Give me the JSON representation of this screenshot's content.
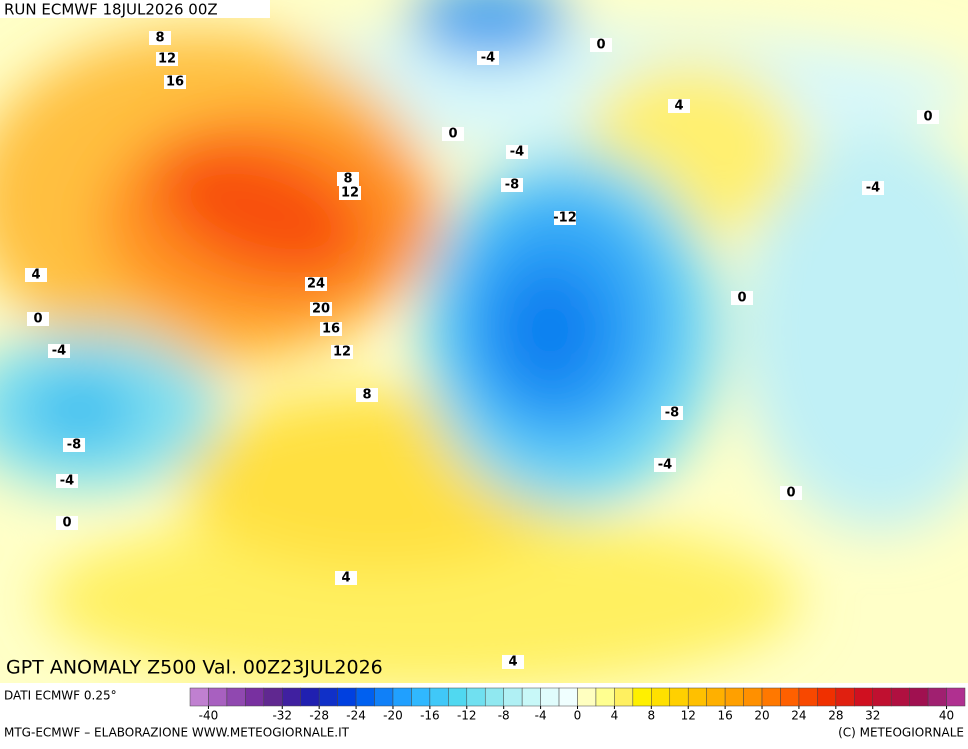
{
  "header": {
    "run": "RUN ECMWF 18JUL2026 00Z",
    "field": "GPT ANOMALY Z500 Val. 00Z23JUL2026"
  },
  "map": {
    "contour_labels": [
      8,
      12,
      16,
      8,
      12,
      24,
      20,
      16,
      12,
      8,
      4,
      0,
      -4,
      -8,
      -4,
      0,
      -4,
      0,
      4,
      0,
      0,
      -4,
      -8,
      -12,
      -4,
      0,
      -8,
      -4,
      0,
      4,
      4
    ]
  },
  "colorbar": {
    "range": [
      -42,
      42
    ],
    "ticks": [
      -40,
      -32,
      -28,
      -24,
      -20,
      -16,
      -12,
      -8,
      -4,
      0,
      4,
      8,
      12,
      16,
      20,
      24,
      28,
      32,
      40
    ],
    "colors": [
      "#c080d0",
      "#a860c0",
      "#9048b0",
      "#7830a0",
      "#602890",
      "#4020a0",
      "#2020b0",
      "#1030c8",
      "#0040e0",
      "#0060f0",
      "#1080f8",
      "#20a0ff",
      "#30b8ff",
      "#40c8f8",
      "#50d8f0",
      "#70e0f0",
      "#90e8f0",
      "#b0f0f4",
      "#c8f8f8",
      "#e0fcfc",
      "#f0ffff",
      "#ffffc0",
      "#ffff90",
      "#fff060",
      "#fff000",
      "#ffe000",
      "#ffd000",
      "#ffc000",
      "#ffb000",
      "#ffa000",
      "#ff9000",
      "#ff7800",
      "#ff6000",
      "#f84800",
      "#f03000",
      "#e02010",
      "#d01020",
      "#c01030",
      "#b01040",
      "#a01050",
      "#a02070",
      "#b03090"
    ]
  },
  "footer": {
    "source": "DATI ECMWF 0.25°",
    "credit": "MTG-ECMWF – ELABORAZIONE WWW.METEOGIORNALE.IT",
    "copyright": "(C) METEOGIORNALE"
  }
}
